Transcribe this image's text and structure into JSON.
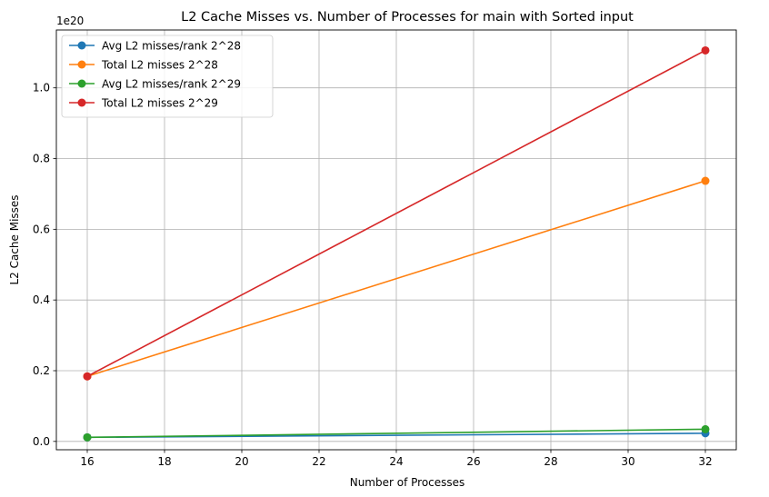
{
  "chart_data": {
    "type": "line",
    "title": "L2 Cache Misses vs. Number of Processes for main with Sorted input",
    "xlabel": "Number of Processes",
    "ylabel": "L2 Cache Misses",
    "y_offset_label": "1e20",
    "x": [
      16,
      32
    ],
    "xlim": [
      15.2,
      32.8
    ],
    "ylim": [
      -0.0236,
      1.1637
    ],
    "x_ticks": [
      16,
      18,
      20,
      22,
      24,
      26,
      28,
      30,
      32
    ],
    "y_ticks": [
      0.0,
      0.2,
      0.4,
      0.6,
      0.8,
      1.0
    ],
    "grid": true,
    "legend_position": "top-left",
    "series": [
      {
        "name": "Avg L2 misses/rank 2^28",
        "values": [
          0.0115,
          0.023
        ],
        "color": "#1f77b4"
      },
      {
        "name": "Total L2 misses 2^28",
        "values": [
          0.184,
          0.737
        ],
        "color": "#ff7f0e"
      },
      {
        "name": "Avg L2 misses/rank 2^29",
        "values": [
          0.0115,
          0.0345
        ],
        "color": "#2ca02c"
      },
      {
        "name": "Total L2 misses 2^29",
        "values": [
          0.184,
          1.106
        ],
        "color": "#d62728"
      }
    ]
  }
}
